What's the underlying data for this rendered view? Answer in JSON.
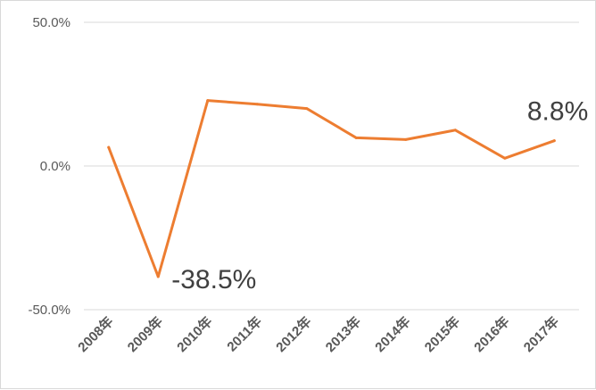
{
  "chart_data": {
    "type": "line",
    "categories": [
      "2008年",
      "2009年",
      "2010年",
      "2011年",
      "2012年",
      "2013年",
      "2014年",
      "2015年",
      "2016年",
      "2017年"
    ],
    "series": [
      {
        "values": [
          6.5,
          -38.5,
          22.8,
          21.5,
          20.0,
          9.8,
          9.2,
          12.5,
          2.7,
          8.8
        ],
        "color": "#ed7d31"
      }
    ],
    "y_ticks": [
      "50.0%",
      "0.0%",
      "-50.0%"
    ],
    "ylim": [
      -50,
      50
    ],
    "grid": true,
    "legend": "none",
    "data_labels": [
      {
        "index": 1,
        "text": "-38.5%"
      },
      {
        "index": 9,
        "text": "8.8%"
      }
    ]
  }
}
